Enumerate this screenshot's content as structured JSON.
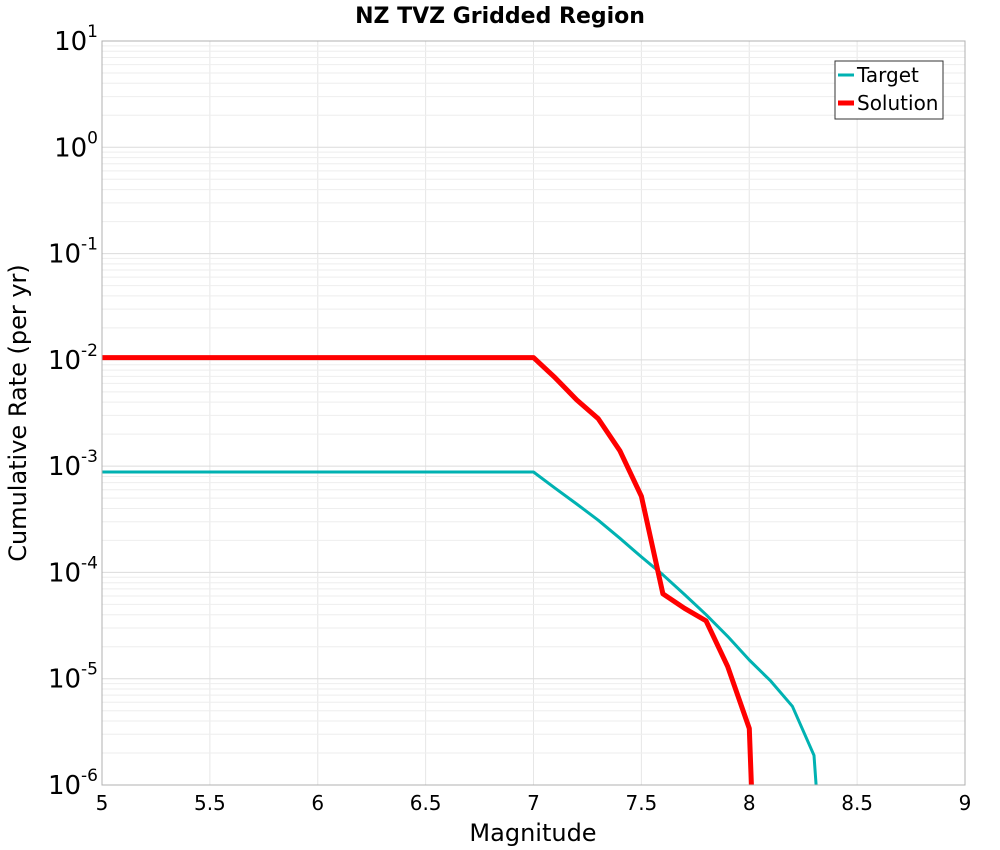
{
  "chart_data": {
    "type": "line",
    "title": "NZ TVZ Gridded Region",
    "xlabel": "Magnitude",
    "ylabel": "Cumulative Rate (per yr)",
    "xlim": [
      5,
      9
    ],
    "ylim": [
      1e-06,
      10
    ],
    "yscale": "log",
    "grid": true,
    "legend_position": "top-right",
    "xticks": [
      "5",
      "5.5",
      "6",
      "6.5",
      "7",
      "7.5",
      "8",
      "8.5",
      "9"
    ],
    "yticks": [
      {
        "base": "10",
        "exp": "-6"
      },
      {
        "base": "10",
        "exp": "-5"
      },
      {
        "base": "10",
        "exp": "-4"
      },
      {
        "base": "10",
        "exp": "-3"
      },
      {
        "base": "10",
        "exp": "-2"
      },
      {
        "base": "10",
        "exp": "-1"
      },
      {
        "base": "10",
        "exp": "0"
      },
      {
        "base": "10",
        "exp": "1"
      }
    ],
    "series": [
      {
        "name": "Target",
        "color": "#00b2b2",
        "x": [
          5.0,
          7.0,
          7.1,
          7.2,
          7.3,
          7.4,
          7.5,
          7.6,
          7.7,
          7.8,
          7.9,
          8.0,
          8.1,
          8.2,
          8.3,
          8.31
        ],
        "y": [
          0.00088,
          0.00088,
          0.00062,
          0.00044,
          0.00031,
          0.00021,
          0.00014,
          9.5e-05,
          6.2e-05,
          4e-05,
          2.5e-05,
          1.5e-05,
          9.5e-06,
          5.5e-06,
          1.9e-06,
          1e-06
        ]
      },
      {
        "name": "Solution",
        "color": "#ff0000",
        "x": [
          5.0,
          7.0,
          7.1,
          7.2,
          7.3,
          7.4,
          7.5,
          7.6,
          7.7,
          7.8,
          7.9,
          8.0,
          8.01
        ],
        "y": [
          0.0105,
          0.0105,
          0.0068,
          0.0042,
          0.0028,
          0.0014,
          0.00052,
          6.3e-05,
          4.6e-05,
          3.5e-05,
          1.3e-05,
          3.4e-06,
          1e-06
        ]
      }
    ]
  }
}
